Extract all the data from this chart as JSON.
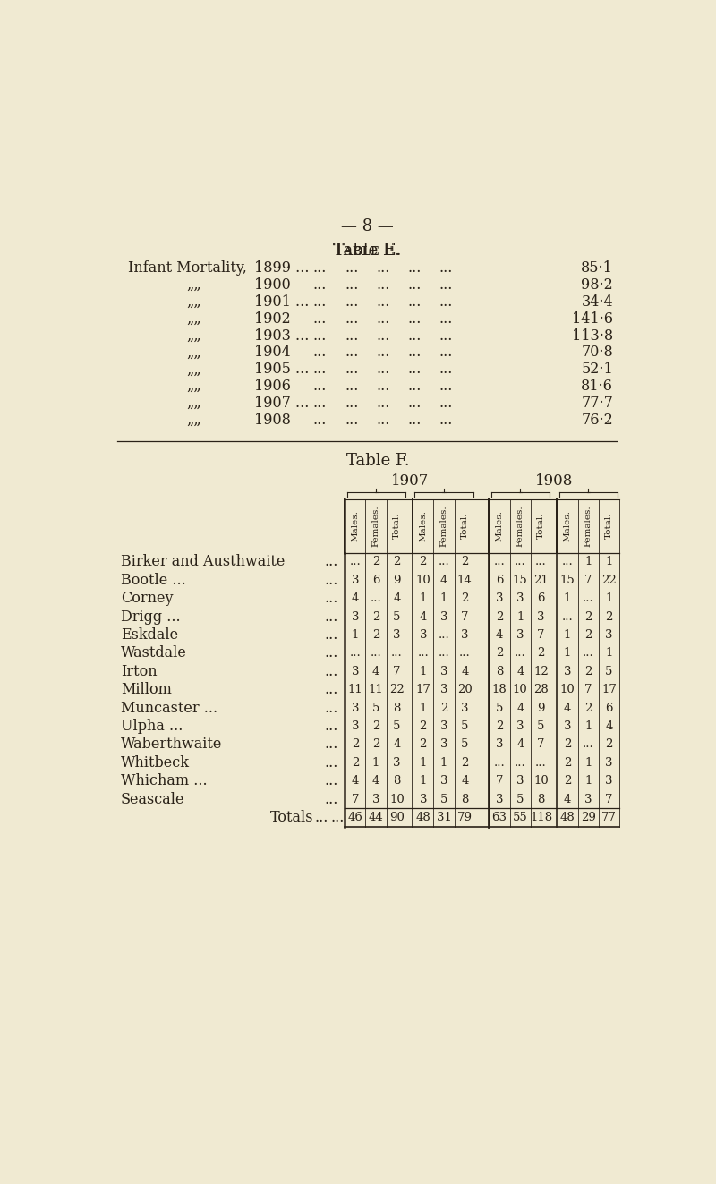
{
  "page_number": "8",
  "bg_color": "#f0ead2",
  "text_color": "#2a2218",
  "table_e_title": "Table E.",
  "table_e_header": "Infant Mortality,",
  "table_e_rows": [
    {
      "year": "1899 ...",
      "value": "85·1"
    },
    {
      "year": "1900",
      "value": "98·2"
    },
    {
      "year": "1901 ...",
      "value": "34·4"
    },
    {
      "year": "1902",
      "value": "141·6"
    },
    {
      "year": "1903 ...",
      "value": "113·8"
    },
    {
      "year": "1904",
      "value": "70·8"
    },
    {
      "year": "1905 ...",
      "value": "52·1"
    },
    {
      "year": "1906",
      "value": "81·6"
    },
    {
      "year": "1907 ...",
      "value": "77·7"
    },
    {
      "year": "1908",
      "value": "76·2"
    }
  ],
  "table_f_title": "Table F.",
  "row_labels": [
    "Birker and Austhwaite",
    "Bootle ...",
    "Corney",
    "Drigg ...",
    "Eskdale",
    "Wastdale",
    "Irton",
    "Millom",
    "Muncaster ...",
    "Ulpha ...",
    "Waberthwaite",
    "Whitbeck",
    "Whicham ...",
    "Seascale",
    "Totals"
  ],
  "row_label_dots": [
    "...",
    "...",
    "...",
    "...",
    "...",
    "...",
    "...",
    "...",
    "...",
    "...",
    "...",
    "...",
    "...",
    "...",
    "...          ..."
  ],
  "table_data": [
    [
      "...",
      "2",
      "2",
      "2",
      "...",
      "2",
      "...",
      "...",
      "...",
      "...",
      "1",
      "1"
    ],
    [
      "3",
      "6",
      "9",
      "10",
      "4",
      "14",
      "6",
      "15",
      "21",
      "15",
      "7",
      "22"
    ],
    [
      "4",
      "...",
      "4",
      "1",
      "1",
      "2",
      "3",
      "3",
      "6",
      "1",
      "...",
      "1"
    ],
    [
      "3",
      "2",
      "5",
      "4",
      "3",
      "7",
      "2",
      "1",
      "3",
      "...",
      "2",
      "2"
    ],
    [
      "1",
      "2",
      "3",
      "3",
      "...",
      "3",
      "4",
      "3",
      "7",
      "1",
      "2",
      "3"
    ],
    [
      "...",
      "...",
      "...",
      "...",
      "...",
      "...",
      "2",
      "...",
      "2",
      "1",
      "...",
      "1"
    ],
    [
      "3",
      "4",
      "7",
      "1",
      "3",
      "4",
      "8",
      "4",
      "12",
      "3",
      "2",
      "5"
    ],
    [
      "11",
      "11",
      "22",
      "17",
      "3",
      "20",
      "18",
      "10",
      "28",
      "10",
      "7",
      "17"
    ],
    [
      "3",
      "5",
      "8",
      "1",
      "2",
      "3",
      "5",
      "4",
      "9",
      "4",
      "2",
      "6"
    ],
    [
      "3",
      "2",
      "5",
      "2",
      "3",
      "5",
      "2",
      "3",
      "5",
      "3",
      "1",
      "4"
    ],
    [
      "2",
      "2",
      "4",
      "2",
      "3",
      "5",
      "3",
      "4",
      "7",
      "2",
      "...",
      "2"
    ],
    [
      "2",
      "1",
      "3",
      "1",
      "1",
      "2",
      "...",
      "...",
      "...",
      "2",
      "1",
      "3"
    ],
    [
      "4",
      "4",
      "8",
      "1",
      "3",
      "4",
      "7",
      "3",
      "10",
      "2",
      "1",
      "3"
    ],
    [
      "7",
      "3",
      "10",
      "3",
      "5",
      "8",
      "3",
      "5",
      "8",
      "4",
      "3",
      "7"
    ],
    [
      "46",
      "44",
      "90",
      "48",
      "31",
      "79",
      "63",
      "55",
      "118",
      "48",
      "29",
      "77"
    ]
  ],
  "col_group_labels": [
    "Males.",
    "Females.",
    "Total."
  ],
  "dots_positions": [
    [
      330,
      365,
      400,
      435,
      468
    ],
    [
      330,
      365,
      400,
      435,
      468
    ],
    [
      330,
      365,
      400,
      435,
      468
    ],
    [
      330,
      365,
      400,
      435,
      468
    ],
    [
      330,
      365,
      400,
      435,
      468
    ],
    [
      330,
      365,
      400,
      435,
      468
    ],
    [
      330,
      365,
      400,
      435,
      468
    ],
    [
      330,
      365,
      400,
      435,
      468
    ],
    [
      330,
      365,
      400,
      435,
      468
    ],
    [
      330,
      365,
      400,
      435,
      468
    ]
  ]
}
